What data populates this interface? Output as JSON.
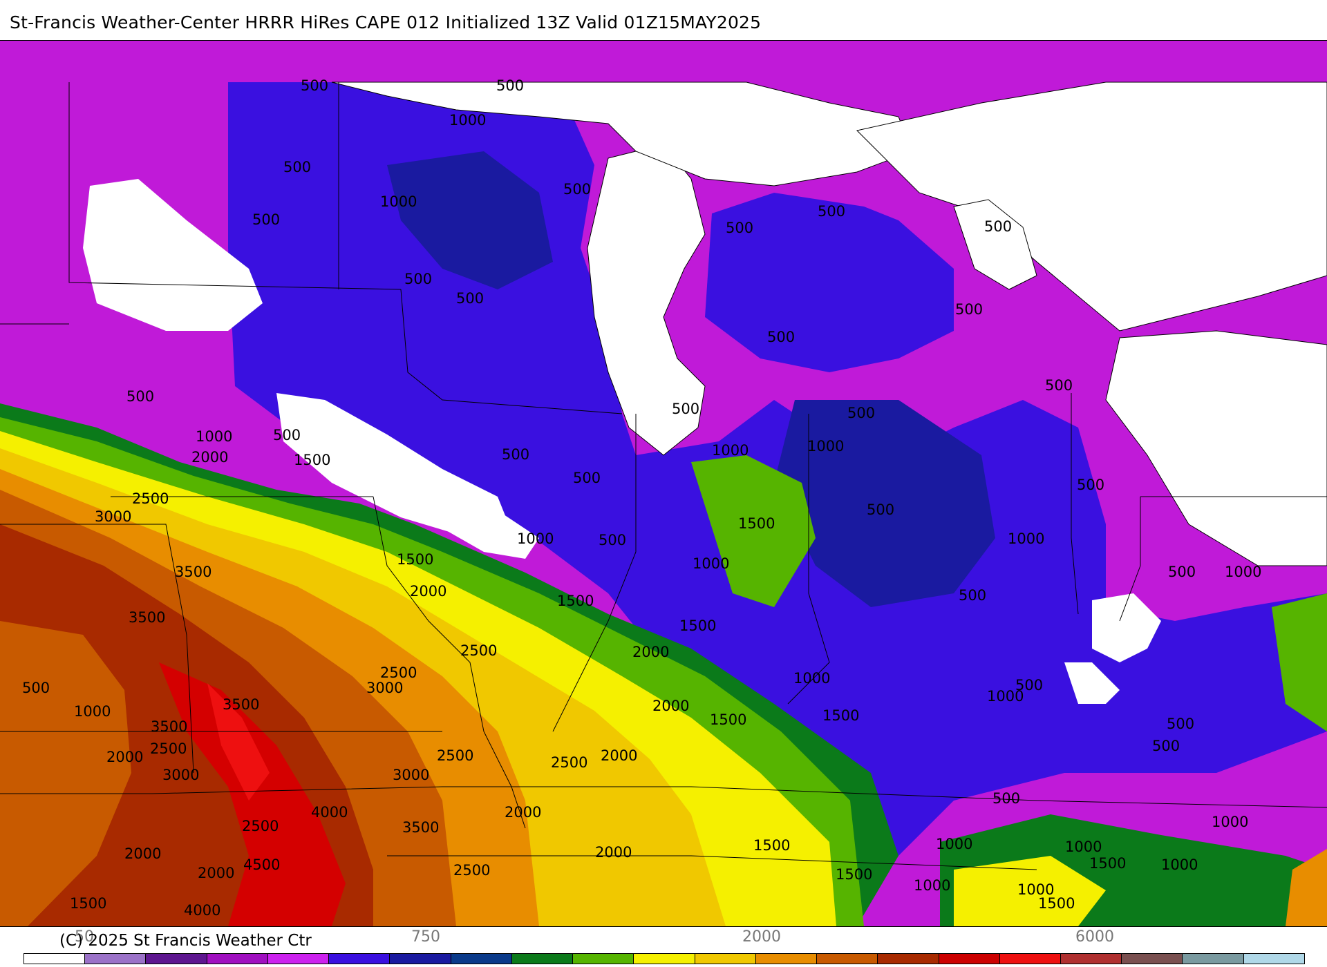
{
  "header": {
    "title": "St-Francis Weather-Center HRRR HiRes CAPE  012 Initialized  13Z Valid 01Z15MAY2025"
  },
  "map": {
    "contour_labels": [
      "500",
      "1000",
      "1500",
      "2000",
      "2500",
      "3000",
      "3500",
      "4000",
      "4500"
    ],
    "colors": {
      "white": "#ffffff",
      "lavender": "#9b72c8",
      "dark_violet": "#5e1690",
      "magenta": "#c01ad8",
      "bright_magenta": "#cc22ee",
      "blue": "#3a10e0",
      "navy": "#1a1aa0",
      "green_dark": "#0b7a1a",
      "green": "#56b400",
      "yellow": "#f5f000",
      "gold": "#f0c800",
      "orange": "#e88d00",
      "dark_orange": "#c85a00",
      "brown_red": "#a82a00",
      "red": "#d40000",
      "bright_red": "#ee1010",
      "lake": "#ffffff"
    }
  },
  "footer": {
    "copyright": "(C) 2025 St Francis Weather Ctr",
    "colorbar_labels": [
      "50",
      "750",
      "2000",
      "6000"
    ],
    "colorbar_colors": [
      "#ffffff",
      "#9b72c8",
      "#5e1690",
      "#a010c0",
      "#cc22ee",
      "#3a10e0",
      "#1a1aa0",
      "#0a3a8a",
      "#0b7a1a",
      "#56b400",
      "#f5f000",
      "#f0c800",
      "#e88d00",
      "#c85a00",
      "#a82a00",
      "#cc0000",
      "#ee1010",
      "#b03030",
      "#7a5050",
      "#7a9aa0",
      "#b0d8e8"
    ]
  }
}
